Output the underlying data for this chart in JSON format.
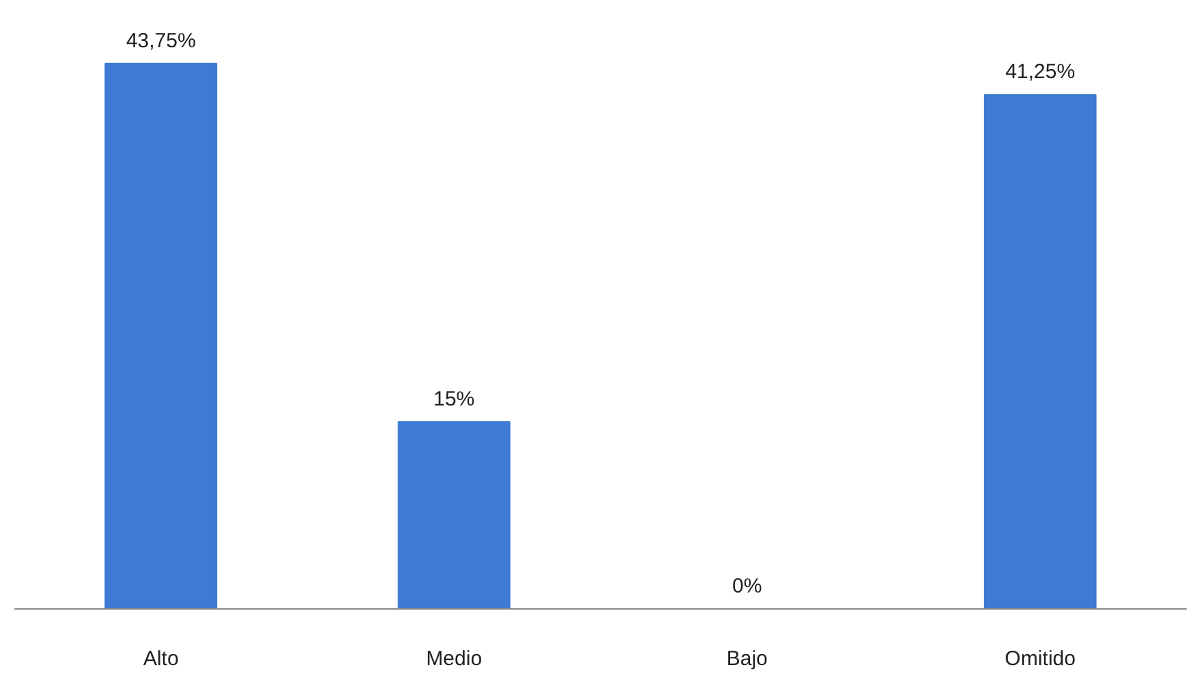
{
  "chart_data": {
    "type": "bar",
    "categories": [
      "Alto",
      "Medio",
      "Bajo",
      "Omitido"
    ],
    "values": [
      43.75,
      15,
      0,
      41.25
    ],
    "value_labels": [
      "43,75%",
      "15%",
      "0%",
      "41,25%"
    ],
    "color": "#3d7bd4",
    "grid": false
  }
}
